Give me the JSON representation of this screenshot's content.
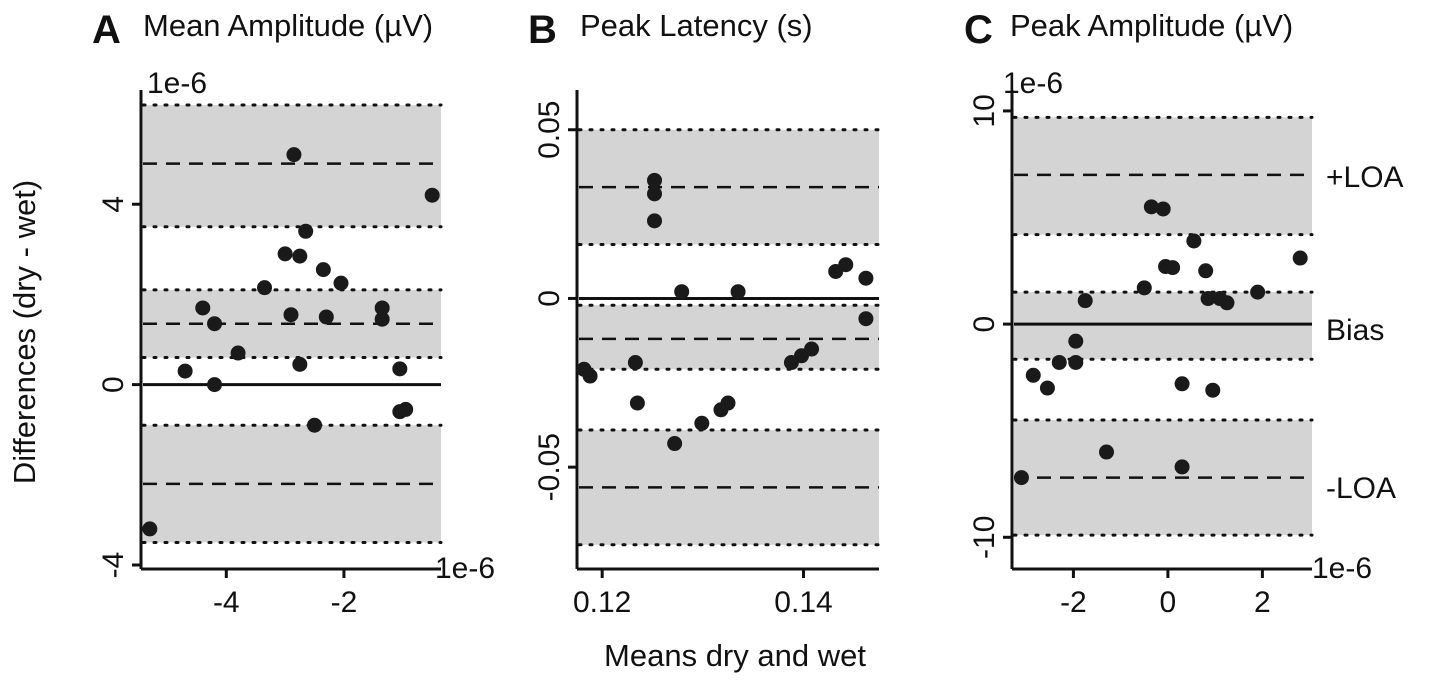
{
  "figure": {
    "ylabel": "Differences (dry - wet)",
    "xlabel": "Means dry and wet"
  },
  "chart_data": [
    {
      "type": "scatter",
      "panel": "A",
      "title": "Mean Amplitude (µV)",
      "y_multiplier_label": "1e-6",
      "x_multiplier_label": "1e-6",
      "xlim": [
        -5.45,
        -0.35
      ],
      "ylim": [
        -4.0,
        6.4
      ],
      "x_ticks": [
        {
          "value": -4,
          "label": "-4"
        },
        {
          "value": -2,
          "label": "-2"
        }
      ],
      "y_ticks": [
        {
          "value": -4,
          "label": "-4"
        },
        {
          "value": 0,
          "label": "0"
        },
        {
          "value": 4,
          "label": "4"
        }
      ],
      "bias": 1.35,
      "bias_ci": [
        0.6,
        2.1
      ],
      "upper_loa": 4.9,
      "upper_loa_ci": [
        3.5,
        6.2
      ],
      "lower_loa": -2.2,
      "lower_loa_ci": [
        -3.5,
        -0.9
      ],
      "reference_line": 0,
      "points": [
        {
          "x": -5.3,
          "y": -3.2
        },
        {
          "x": -4.7,
          "y": 0.3
        },
        {
          "x": -4.4,
          "y": 1.7
        },
        {
          "x": -4.2,
          "y": 1.35
        },
        {
          "x": -4.2,
          "y": 0.0
        },
        {
          "x": -3.8,
          "y": 0.7
        },
        {
          "x": -3.35,
          "y": 2.15
        },
        {
          "x": -3.0,
          "y": 2.9
        },
        {
          "x": -2.9,
          "y": 1.55
        },
        {
          "x": -2.85,
          "y": 5.1
        },
        {
          "x": -2.75,
          "y": 2.85
        },
        {
          "x": -2.75,
          "y": 0.45
        },
        {
          "x": -2.65,
          "y": 3.4
        },
        {
          "x": -2.5,
          "y": -0.9
        },
        {
          "x": -2.35,
          "y": 2.55
        },
        {
          "x": -2.3,
          "y": 1.5
        },
        {
          "x": -2.05,
          "y": 2.25
        },
        {
          "x": -1.35,
          "y": 1.7
        },
        {
          "x": -1.35,
          "y": 1.45
        },
        {
          "x": -1.05,
          "y": 0.35
        },
        {
          "x": -1.05,
          "y": -0.6
        },
        {
          "x": -0.95,
          "y": -0.55
        },
        {
          "x": -0.5,
          "y": 4.2
        }
      ]
    },
    {
      "type": "scatter",
      "panel": "B",
      "title": "Peak Latency (s)",
      "xlim": [
        0.1175,
        0.1475
      ],
      "ylim": [
        -0.079,
        0.06
      ],
      "x_ticks": [
        {
          "value": 0.12,
          "label": "0.12"
        },
        {
          "value": 0.14,
          "label": "0.14"
        }
      ],
      "y_ticks": [
        {
          "value": -0.05,
          "label": "-0.05"
        },
        {
          "value": 0,
          "label": "0"
        },
        {
          "value": 0.05,
          "label": "0.05"
        }
      ],
      "bias": -0.012,
      "bias_ci": [
        -0.021,
        -0.002
      ],
      "upper_loa": 0.033,
      "upper_loa_ci": [
        0.016,
        0.05
      ],
      "lower_loa": -0.056,
      "lower_loa_ci": [
        -0.073,
        -0.039
      ],
      "reference_line": 0,
      "points": [
        {
          "x": 0.1182,
          "y": -0.021
        },
        {
          "x": 0.1188,
          "y": -0.023
        },
        {
          "x": 0.1233,
          "y": -0.019
        },
        {
          "x": 0.1235,
          "y": -0.031
        },
        {
          "x": 0.1252,
          "y": 0.035
        },
        {
          "x": 0.1252,
          "y": 0.031
        },
        {
          "x": 0.1252,
          "y": 0.023
        },
        {
          "x": 0.1272,
          "y": -0.043
        },
        {
          "x": 0.1279,
          "y": 0.002
        },
        {
          "x": 0.1299,
          "y": -0.037
        },
        {
          "x": 0.1318,
          "y": -0.033
        },
        {
          "x": 0.1325,
          "y": -0.031
        },
        {
          "x": 0.1335,
          "y": 0.002
        },
        {
          "x": 0.1388,
          "y": -0.019
        },
        {
          "x": 0.1398,
          "y": -0.017
        },
        {
          "x": 0.1408,
          "y": -0.015
        },
        {
          "x": 0.1432,
          "y": 0.008
        },
        {
          "x": 0.1442,
          "y": 0.01
        },
        {
          "x": 0.1462,
          "y": 0.006
        },
        {
          "x": 0.1462,
          "y": -0.006
        }
      ]
    },
    {
      "type": "scatter",
      "panel": "C",
      "title": "Peak Amplitude (µV)",
      "y_multiplier_label": "1e-6",
      "x_multiplier_label": "1e-6",
      "xlim": [
        -3.3,
        3.05
      ],
      "ylim": [
        -11.3,
        10.7
      ],
      "x_ticks": [
        {
          "value": -2,
          "label": "-2"
        },
        {
          "value": 0,
          "label": "0"
        },
        {
          "value": 2,
          "label": "2"
        }
      ],
      "y_ticks": [
        {
          "value": -10,
          "label": "-10"
        },
        {
          "value": 0,
          "label": "0"
        },
        {
          "value": 10,
          "label": "10"
        }
      ],
      "bias": 0,
      "bias_ci": [
        -1.65,
        1.5
      ],
      "upper_loa": 7.0,
      "upper_loa_ci": [
        4.2,
        9.7
      ],
      "lower_loa": -7.2,
      "lower_loa_ci": [
        -9.9,
        -4.5
      ],
      "side_labels": {
        "upper": "+LOA",
        "bias": "Bias",
        "lower": "-LOA"
      },
      "points": [
        {
          "x": -3.1,
          "y": -7.2
        },
        {
          "x": -2.85,
          "y": -2.4
        },
        {
          "x": -2.55,
          "y": -3.0
        },
        {
          "x": -2.3,
          "y": -1.8
        },
        {
          "x": -1.95,
          "y": -0.8
        },
        {
          "x": -1.95,
          "y": -1.8
        },
        {
          "x": -1.75,
          "y": 1.1
        },
        {
          "x": -1.3,
          "y": -6.0
        },
        {
          "x": -0.5,
          "y": 1.7
        },
        {
          "x": -0.35,
          "y": 5.5
        },
        {
          "x": -0.1,
          "y": 5.4
        },
        {
          "x": -0.05,
          "y": 2.7
        },
        {
          "x": 0.1,
          "y": 2.65
        },
        {
          "x": 0.3,
          "y": -6.7
        },
        {
          "x": 0.3,
          "y": -2.8
        },
        {
          "x": 0.55,
          "y": 3.9
        },
        {
          "x": 0.8,
          "y": 2.5
        },
        {
          "x": 0.85,
          "y": 1.2
        },
        {
          "x": 0.95,
          "y": -3.1
        },
        {
          "x": 1.1,
          "y": 1.2
        },
        {
          "x": 1.25,
          "y": 1.0
        },
        {
          "x": 1.9,
          "y": 1.5
        },
        {
          "x": 2.8,
          "y": 3.1
        }
      ]
    }
  ]
}
